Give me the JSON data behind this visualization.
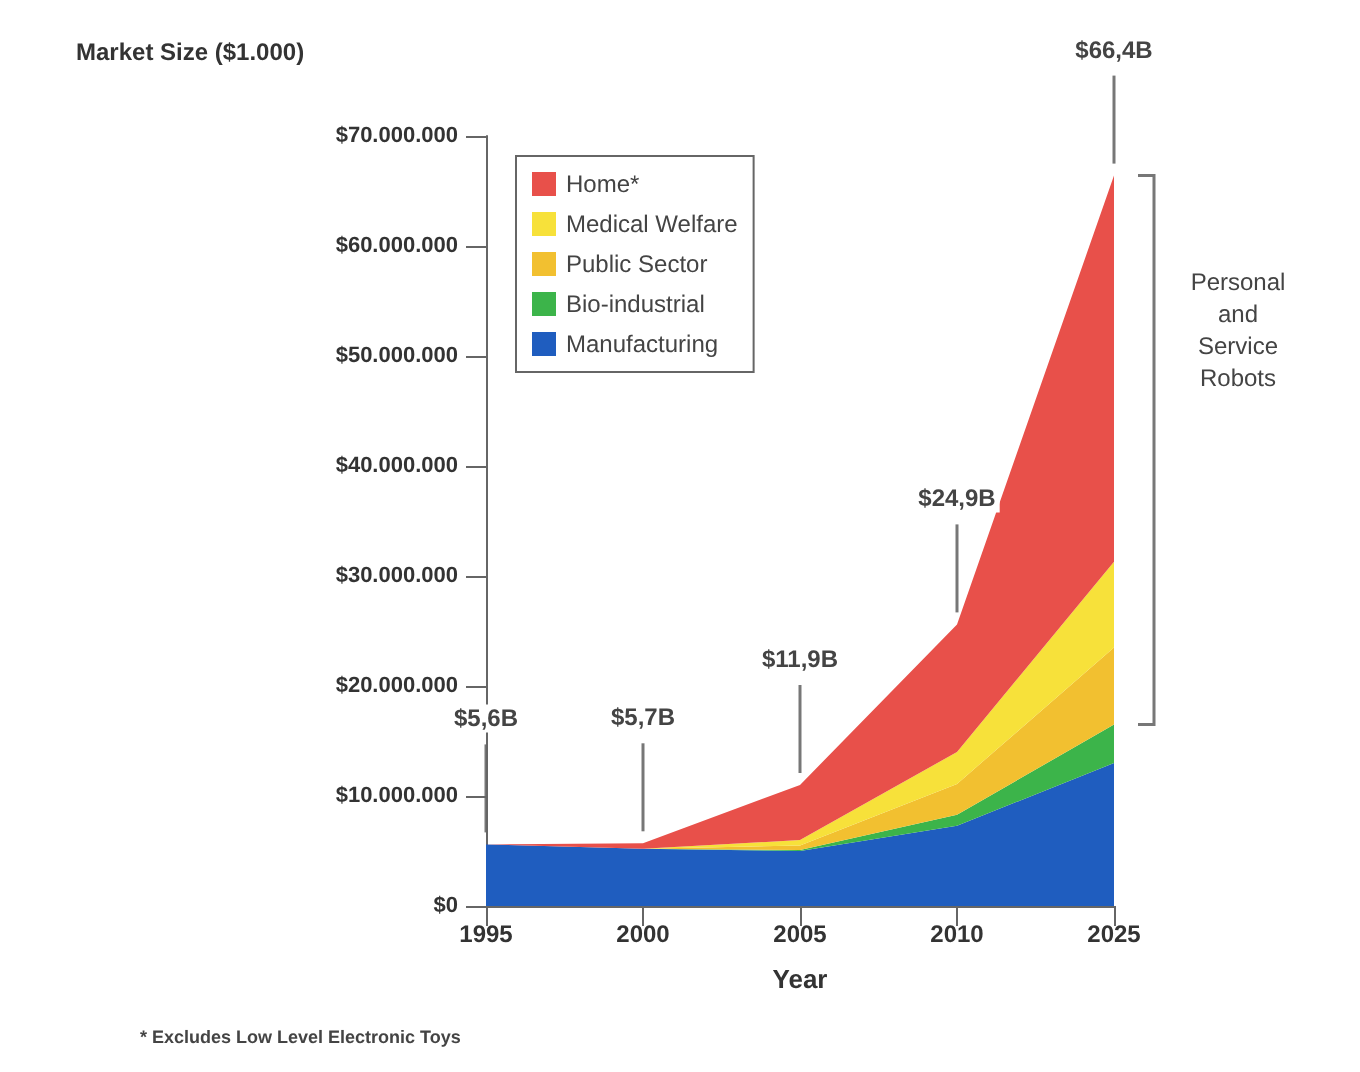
{
  "chart_data": {
    "type": "area",
    "stacked": true,
    "ylabel": "Market Size ($1.000)",
    "xlabel": "Year",
    "categories": [
      "1995",
      "2000",
      "2005",
      "2010",
      "2025"
    ],
    "series": [
      {
        "name": "Manufacturing",
        "color": "#1f5dbf",
        "values": [
          5600000,
          5200000,
          5000000,
          7300000,
          13000000
        ]
      },
      {
        "name": "Bio-industrial",
        "color": "#3cb44a",
        "values": [
          0,
          0,
          100000,
          1000000,
          3500000
        ]
      },
      {
        "name": "Public Sector",
        "color": "#f2c030",
        "values": [
          0,
          0,
          400000,
          2800000,
          7000000
        ]
      },
      {
        "name": "Medical Welfare",
        "color": "#f7e13a",
        "values": [
          0,
          0,
          500000,
          2900000,
          7800000
        ]
      },
      {
        "name": "Home*",
        "color": "#e8504a",
        "values": [
          0,
          500000,
          5000000,
          11600000,
          35100000
        ]
      }
    ],
    "ylim": [
      0,
      70000000
    ],
    "yticks": [
      {
        "value": 0,
        "label": "$0"
      },
      {
        "value": 10000000,
        "label": "$10.000.000"
      },
      {
        "value": 20000000,
        "label": "$20.000.000"
      },
      {
        "value": 30000000,
        "label": "$30.000.000"
      },
      {
        "value": 40000000,
        "label": "$40.000.000"
      },
      {
        "value": 50000000,
        "label": "$50.000.000"
      },
      {
        "value": 60000000,
        "label": "$60.000.000"
      },
      {
        "value": 70000000,
        "label": "$70.000.000"
      }
    ],
    "grid": false,
    "legend": "top left",
    "annotations": [
      {
        "text": "$5,6B",
        "x": "1995",
        "y": 5600000
      },
      {
        "text": "$5,7B",
        "x": "2000",
        "y": 5700000
      },
      {
        "text": "$11,9B",
        "x": "2005",
        "y": 11000000
      },
      {
        "text": "$24,9B",
        "x": "2010",
        "y": 25600000
      },
      {
        "text": "$66,4B",
        "x": "2025",
        "y": 66400000
      },
      "Personal\nand\nService\nRobots",
      "* Excludes Low Level Electronic Toys"
    ]
  }
}
